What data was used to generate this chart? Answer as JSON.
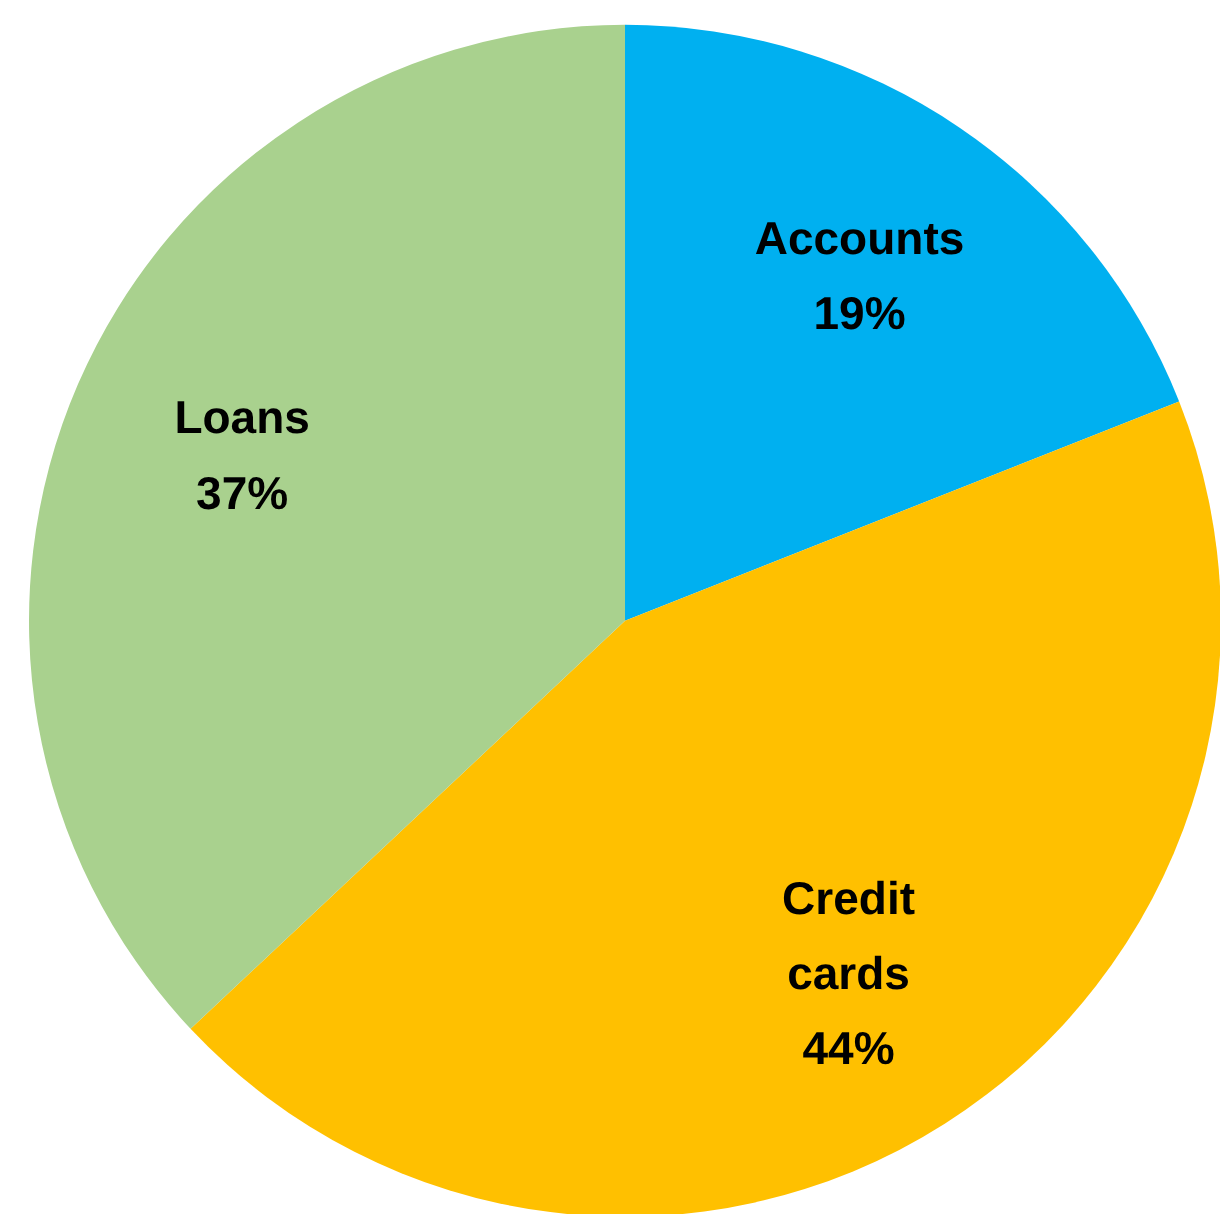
{
  "chart_data": {
    "type": "pie",
    "categories": [
      "Accounts",
      "Credit cards",
      "Loans"
    ],
    "values": [
      19,
      44,
      37
    ],
    "colors": [
      "#00b0f0",
      "#ffc000",
      "#a9d18e"
    ],
    "value_labels": [
      "19%",
      "44%",
      "37%"
    ]
  }
}
